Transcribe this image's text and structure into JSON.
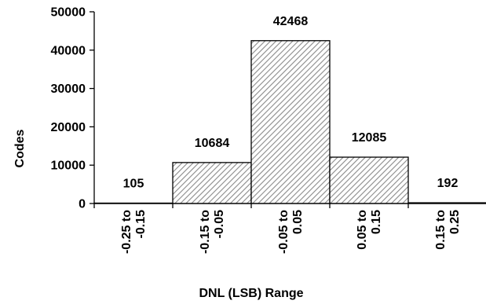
{
  "chart_data": {
    "type": "bar",
    "title": "",
    "xlabel": "DNL (LSB) Range",
    "ylabel": "Codes",
    "ylim": [
      0,
      50000
    ],
    "yticks": [
      0,
      10000,
      20000,
      30000,
      40000,
      50000
    ],
    "grid": false,
    "legend": "none",
    "bar_fill": "hatched",
    "bar_color": "#d0d0d0",
    "categories": [
      [
        "-0.25 to",
        "-0.15"
      ],
      [
        "-0.15 to",
        "-0.05"
      ],
      [
        "-0.05 to",
        "0.05"
      ],
      [
        "0.05 to",
        "0.15"
      ],
      [
        "0.15 to",
        "0.25"
      ]
    ],
    "values": [
      105,
      10684,
      42468,
      12085,
      192
    ],
    "data_labels": [
      "105",
      "10684",
      "42468",
      "12085",
      "192"
    ]
  }
}
